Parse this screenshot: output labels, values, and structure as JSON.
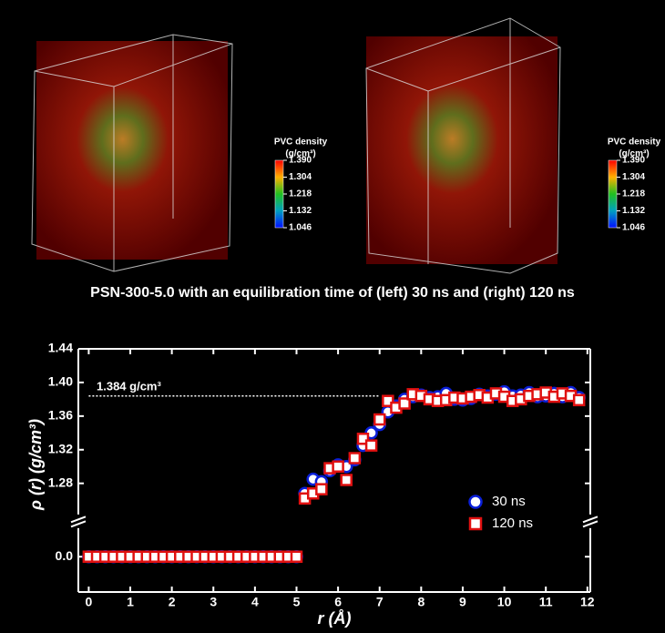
{
  "figure": {
    "panels": [
      {
        "colorbar_title": "PVC density",
        "colorbar_unit": "(g/cm³)",
        "clim": [
          1.046,
          1.39
        ],
        "colorbar_ticks": [
          {
            "value": 1.39,
            "label": "1.390"
          },
          1.304,
          1.218,
          1.132,
          1.046
        ]
      },
      {
        "colorbar_title": "PVC density",
        "colorbar_unit": "(g/cm³)",
        "clim": [
          1.046,
          1.39
        ],
        "colorbar_ticks": [
          {
            "value": 1.39,
            "label": "1.390"
          },
          1.304,
          1.218,
          1.132,
          1.046
        ]
      }
    ],
    "caption": "PSN-300-5.0 with an equilibration time of  (left) 30 ns and (right) 120 ns"
  },
  "chart_data": {
    "type": "scatter",
    "x_label": "r (Å)",
    "y_label": "ρ (r) (g/cm³)",
    "xlim": [
      -0.25,
      12.07
    ],
    "xticks": [
      0,
      1,
      2,
      3,
      4,
      5,
      6,
      7,
      8,
      9,
      10,
      11,
      12
    ],
    "y_segments": [
      {
        "ylim": [
          -0.042,
          0.034
        ],
        "yticks": [
          {
            "value": 0,
            "label": "0.0"
          }
        ]
      },
      {
        "ylim": [
          1.243,
          1.44
        ],
        "yticks": [
          1.28,
          1.32,
          1.36,
          {
            "value": 1.4,
            "label": "1.40"
          },
          1.44
        ]
      }
    ],
    "reference_line": {
      "value": 1.384,
      "label": "1.384 g/cm³",
      "xrange": [
        0,
        7
      ]
    },
    "legend": "lower right",
    "x": [
      0,
      0.2,
      0.4,
      0.6,
      0.8,
      1,
      1.2,
      1.4,
      1.6,
      1.8,
      2,
      2.2,
      2.4,
      2.6,
      2.8,
      3,
      3.2,
      3.4,
      3.6,
      3.8,
      4,
      4.2,
      4.4,
      4.6,
      4.8,
      5,
      5.2,
      5.4,
      5.6,
      5.8,
      6,
      6.2,
      6.4,
      6.6,
      6.8,
      7,
      7.2,
      7.4,
      7.6,
      7.8,
      8,
      8.2,
      8.4,
      8.6,
      8.8,
      9,
      9.2,
      9.4,
      9.6,
      9.8,
      10,
      10.2,
      10.4,
      10.6,
      10.8,
      11,
      11.2,
      11.4,
      11.6,
      11.8
    ],
    "series": [
      {
        "name": "30 ns",
        "color": "#0a1fd8",
        "marker": "circle",
        "values": [
          0,
          0,
          0,
          0,
          0,
          0,
          0,
          0,
          0,
          0,
          0,
          0,
          0,
          0,
          0,
          0,
          0,
          0,
          0,
          0,
          0,
          0,
          0,
          0,
          0,
          0,
          1.268,
          1.285,
          1.282,
          1.295,
          1.302,
          1.3,
          1.308,
          1.325,
          1.34,
          1.35,
          1.365,
          1.372,
          1.38,
          1.383,
          1.385,
          1.382,
          1.383,
          1.387,
          1.38,
          1.379,
          1.381,
          1.386,
          1.384,
          1.386,
          1.389,
          1.384,
          1.385,
          1.388,
          1.383,
          1.384,
          1.387,
          1.383,
          1.388,
          1.382
        ]
      },
      {
        "name": "120 ns",
        "color": "#e01010",
        "marker": "square",
        "values": [
          0,
          0,
          0,
          0,
          0,
          0,
          0,
          0,
          0,
          0,
          0,
          0,
          0,
          0,
          0,
          0,
          0,
          0,
          0,
          0,
          0,
          0,
          0,
          0,
          0,
          0,
          1.262,
          1.268,
          1.273,
          1.298,
          1.3,
          1.284,
          1.31,
          1.333,
          1.325,
          1.356,
          1.378,
          1.37,
          1.375,
          1.386,
          1.384,
          1.38,
          1.378,
          1.379,
          1.382,
          1.381,
          1.383,
          1.385,
          1.382,
          1.387,
          1.383,
          1.378,
          1.38,
          1.384,
          1.386,
          1.388,
          1.383,
          1.387,
          1.384,
          1.379
        ]
      }
    ]
  }
}
